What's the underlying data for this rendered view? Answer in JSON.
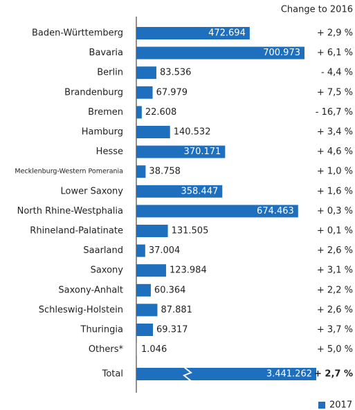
{
  "chart_data": {
    "type": "bar",
    "orientation": "horizontal",
    "header": "Change to 2016",
    "categories": [
      "Baden-Württemberg",
      "Bavaria",
      "Berlin",
      "Brandenburg",
      "Bremen",
      "Hamburg",
      "Hesse",
      "Mecklenburg-Western Pomerania",
      "Lower Saxony",
      "North Rhine-Westphalia",
      "Rhineland-Palatinate",
      "Saarland",
      "Saxony",
      "Saxony-Anhalt",
      "Schleswig-Holstein",
      "Thuringia",
      "Others*"
    ],
    "series": [
      {
        "name": "2017",
        "color": "#1f6fbf",
        "values": [
          472694,
          700973,
          83536,
          67979,
          22608,
          140532,
          370171,
          38758,
          358447,
          674463,
          131505,
          37004,
          123984,
          60364,
          87881,
          69317,
          1046
        ],
        "value_labels": [
          "472.694",
          "700.973",
          "83.536",
          "67.979",
          "22.608",
          "140.532",
          "370.171",
          "38.758",
          "358.447",
          "674.463",
          "131.505",
          "37.004",
          "123.984",
          "60.364",
          "87.881",
          "69.317",
          "1.046"
        ]
      }
    ],
    "changes": [
      2.9,
      6.1,
      -4.4,
      7.5,
      -16.7,
      3.4,
      4.6,
      1.0,
      1.6,
      0.3,
      0.1,
      2.6,
      3.1,
      2.2,
      2.6,
      3.7,
      5.0
    ],
    "change_labels": [
      "+ 2,9 %",
      "+ 6,1 %",
      "- 4,4 %",
      "+ 7,5 %",
      "- 16,7 %",
      "+ 3,4 %",
      "+ 4,6 %",
      "+ 1,0 %",
      "+ 1,6 %",
      "+ 0,3 %",
      "+ 0,1 %",
      "+ 2,6 %",
      "+ 3,1 %",
      "+ 2,2 %",
      "+ 2,6 %",
      "+ 3,7 %",
      "+ 5,0 %"
    ],
    "total": {
      "label": "Total",
      "value": 3441262,
      "value_label": "3.441.262",
      "change": 2.7,
      "change_label": "+ 2,7 %"
    },
    "xlim": [
      0,
      750000
    ]
  }
}
